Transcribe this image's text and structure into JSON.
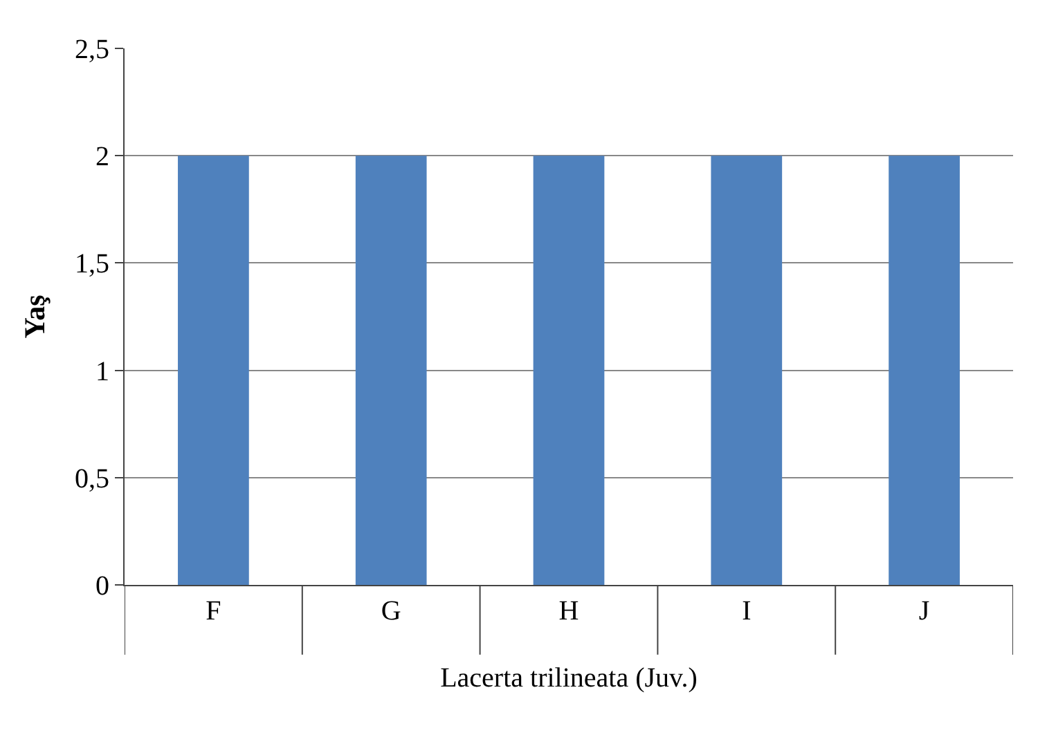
{
  "chart_data": {
    "type": "bar",
    "categories": [
      "F",
      "G",
      "H",
      "I",
      "J"
    ],
    "values": [
      2,
      2,
      2,
      2,
      2
    ],
    "color": "#4f81bd",
    "ylabel": "Yaş",
    "xlabel": "Lacerta trilineata (Juv.)",
    "ylim": [
      0,
      2.5
    ],
    "yticks": [
      0,
      {
        "value": 0.5,
        "label": "0,5"
      },
      1,
      {
        "value": 1.5,
        "label": "1,5"
      },
      2,
      {
        "value": 2.5,
        "label": "2,5"
      }
    ],
    "grid": "y"
  }
}
